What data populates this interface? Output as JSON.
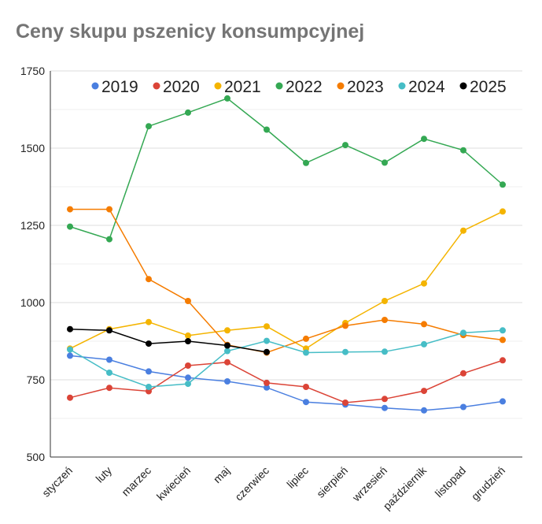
{
  "chart_data": {
    "type": "line",
    "title": "Ceny skupu pszenicy konsumpcyjnej",
    "xlabel": "",
    "ylabel": "",
    "ylim": [
      500,
      1750
    ],
    "yticks": [
      500,
      750,
      1000,
      1250,
      1500,
      1750
    ],
    "grid": true,
    "legend_position": "top",
    "categories": [
      "styczeń",
      "luty",
      "marzec",
      "kwiecień",
      "maj",
      "czerwiec",
      "lipiec",
      "sierpień",
      "wrzesień",
      "październik",
      "listopad",
      "grudzień"
    ],
    "series": [
      {
        "name": "2019",
        "color": "#4a7fe0",
        "values": [
          828,
          815,
          777,
          757,
          745,
          725,
          678,
          670,
          659,
          651,
          662,
          680
        ]
      },
      {
        "name": "2020",
        "color": "#db4437",
        "values": [
          692,
          724,
          713,
          796,
          807,
          740,
          727,
          676,
          688,
          714,
          771,
          813
        ]
      },
      {
        "name": "2021",
        "color": "#f4b400",
        "values": [
          851,
          914,
          937,
          893,
          910,
          923,
          851,
          934,
          1005,
          1062,
          1233,
          1295
        ]
      },
      {
        "name": "2022",
        "color": "#34a853",
        "values": [
          1246,
          1205,
          1571,
          1615,
          1661,
          1560,
          1452,
          1510,
          1453,
          1530,
          1493,
          1382
        ]
      },
      {
        "name": "2023",
        "color": "#f57c00",
        "values": [
          1302,
          1302,
          1076,
          1005,
          863,
          838,
          883,
          925,
          944,
          930,
          895,
          879
        ]
      },
      {
        "name": "2024",
        "color": "#46bdc6",
        "values": [
          848,
          773,
          727,
          737,
          843,
          876,
          838,
          840,
          841,
          865,
          902,
          910
        ]
      },
      {
        "name": "2025",
        "color": "#000000",
        "values": [
          914,
          910,
          867,
          875,
          861,
          840,
          null,
          null,
          null,
          null,
          null,
          null
        ]
      }
    ]
  }
}
